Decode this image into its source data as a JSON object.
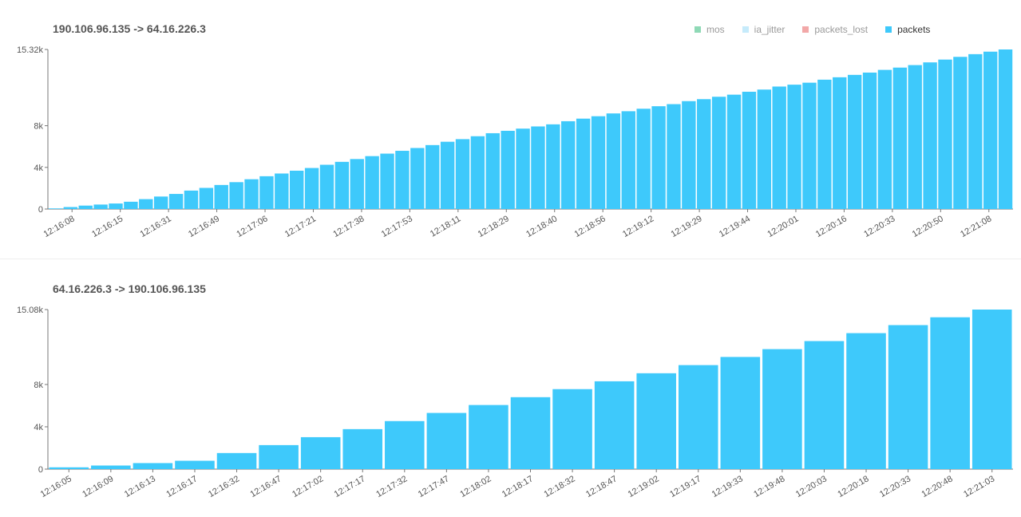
{
  "legend": [
    {
      "label": "mos",
      "color": "#8fd9b6"
    },
    {
      "label": "ia_jitter",
      "color": "#c6ebfb"
    },
    {
      "label": "packets_lost",
      "color": "#f2a8a8"
    },
    {
      "label": "packets",
      "color": "#3ec9fb"
    }
  ],
  "chart_data": [
    {
      "type": "bar",
      "title": "190.106.96.135 -> 64.16.226.3",
      "series": [
        {
          "name": "packets",
          "color": "#3ec9fb"
        }
      ],
      "ylim": [
        0,
        15320
      ],
      "y_ticks": [
        {
          "value": 0,
          "label": "0"
        },
        {
          "value": 4000,
          "label": "4k"
        },
        {
          "value": 8000,
          "label": "8k"
        },
        {
          "value": 15320,
          "label": "15.32k"
        }
      ],
      "x_tick_labels": [
        "12:16:08",
        "12:16:15",
        "12:16:31",
        "12:16:49",
        "12:17:06",
        "12:17:21",
        "12:17:38",
        "12:17:53",
        "12:18:11",
        "12:18:29",
        "12:18:40",
        "12:18:56",
        "12:19:12",
        "12:19:29",
        "12:19:44",
        "12:20:01",
        "12:20:16",
        "12:20:33",
        "12:20:50",
        "12:21:08"
      ],
      "values": [
        60,
        190,
        330,
        430,
        530,
        700,
        950,
        1200,
        1450,
        1770,
        2030,
        2310,
        2580,
        2860,
        3150,
        3410,
        3680,
        3940,
        4250,
        4530,
        4800,
        5080,
        5320,
        5590,
        5860,
        6140,
        6460,
        6710,
        6990,
        7280,
        7510,
        7720,
        7930,
        8130,
        8430,
        8680,
        8910,
        9180,
        9390,
        9630,
        9870,
        10070,
        10360,
        10550,
        10780,
        10980,
        11260,
        11470,
        11760,
        11940,
        12130,
        12420,
        12650,
        12880,
        13100,
        13360,
        13580,
        13820,
        14080,
        14350,
        14610,
        14870,
        15110,
        15320
      ]
    },
    {
      "type": "bar",
      "title": "64.16.226.3 -> 190.106.96.135",
      "series": [
        {
          "name": "packets",
          "color": "#3ec9fb"
        }
      ],
      "ylim": [
        0,
        15080
      ],
      "y_ticks": [
        {
          "value": 0,
          "label": "0"
        },
        {
          "value": 4000,
          "label": "4k"
        },
        {
          "value": 8000,
          "label": "8k"
        },
        {
          "value": 15080,
          "label": "15.08k"
        }
      ],
      "x_tick_labels": [
        "12:16:05",
        "12:16:09",
        "12:16:13",
        "12:16:17",
        "12:16:32",
        "12:16:47",
        "12:17:02",
        "12:17:17",
        "12:17:32",
        "12:17:47",
        "12:18:02",
        "12:18:17",
        "12:18:32",
        "12:18:47",
        "12:19:02",
        "12:19:17",
        "12:19:33",
        "12:19:48",
        "12:20:03",
        "12:20:18",
        "12:20:33",
        "12:20:48",
        "12:21:03"
      ],
      "values": [
        170,
        340,
        570,
        790,
        1520,
        2270,
        3020,
        3780,
        4540,
        5310,
        6060,
        6800,
        7560,
        8300,
        9060,
        9830,
        10600,
        11340,
        12100,
        12850,
        13610,
        14350,
        15080
      ]
    }
  ]
}
